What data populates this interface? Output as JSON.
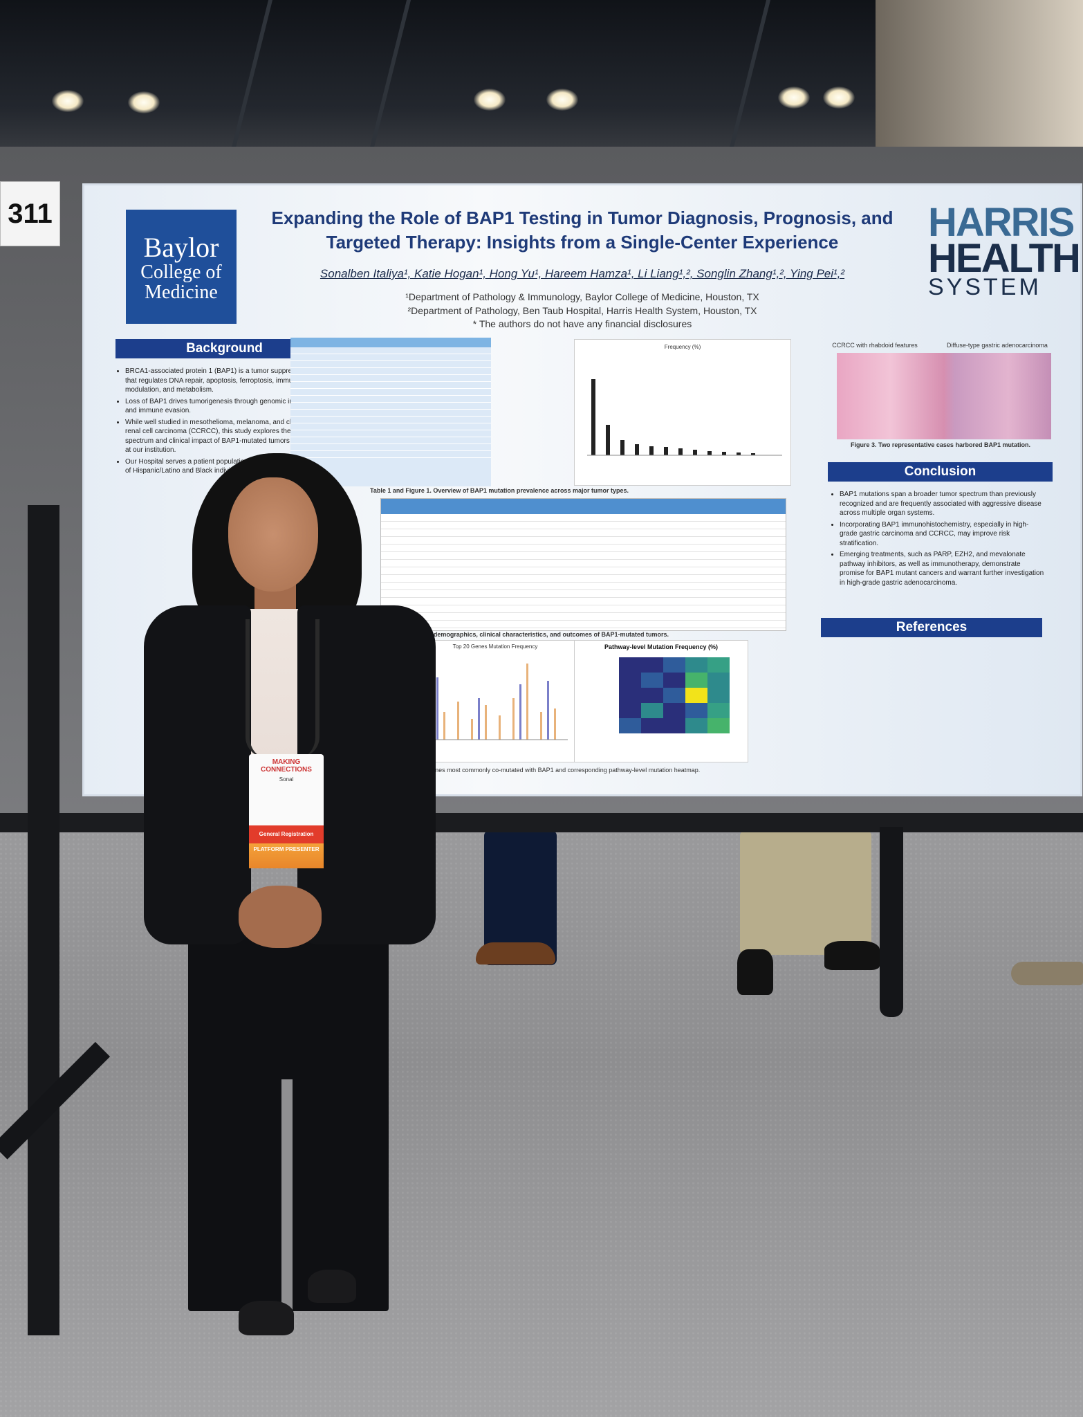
{
  "scene": {
    "booth_number": "311"
  },
  "poster": {
    "title_line1": "Expanding the Role of BAP1 Testing in Tumor Diagnosis, Prognosis, and",
    "title_line2": "Targeted Therapy: Insights from a Single-Center Experience",
    "authors": "Sonalben Italiya¹, Katie Hogan¹, Hong Yu¹, Hareem Hamza¹, Li Liang¹,², Songlin Zhang¹,², Ying Pei¹,²",
    "affiliation1": "¹Department of Pathology & Immunology, Baylor College of Medicine, Houston, TX",
    "affiliation2": "²Department of Pathology, Ben Taub Hospital, Harris Health System, Houston, TX",
    "disclosure": "* The authors do not have any financial disclosures",
    "logo_left": {
      "line1": "Baylor",
      "line2": "College of",
      "line3": "Medicine",
      "color": "#1f4f9a"
    },
    "logo_right": {
      "line1": "HARRIS",
      "line2": "HEALTH",
      "line3": "SYSTEM"
    },
    "sections": {
      "background": "Background",
      "conclusion": "Conclusion",
      "references": "References"
    },
    "background_bullets": [
      "BRCA1-associated protein 1 (BAP1) is a tumor suppressor gene that regulates DNA repair, apoptosis, ferroptosis, immune modulation, and metabolism.",
      "Loss of BAP1 drives tumorigenesis through genomic instability and immune evasion.",
      "While well studied in mesothelioma, melanoma, and clear cell renal cell carcinoma (CCRCC), this study explores the broader spectrum and clinical impact of BAP1-mutated tumors identified at our institution.",
      "Our Hospital serves a patient population with a high proportion of Hispanic/Latino and Black individuals"
    ],
    "conclusion_bullets": [
      "BAP1 mutations span a broader tumor spectrum than previously recognized and are frequently associated with aggressive disease across multiple organ systems.",
      "Incorporating BAP1 immunohistochemistry, especially in high-grade gastric carcinoma and CCRCC, may improve risk stratification.",
      "Emerging treatments, such as PARP, EZH2, and mevalonate pathway inhibitors, as well as immunotherapy, demonstrate promise for BAP1 mutant cancers and warrant further investigation in high-grade gastric adenocarcinoma."
    ],
    "figure_captions": {
      "table1_fig1": "Table 1 and Figure 1. Overview of BAP1 mutation prevalence across major tumor types.",
      "table2": "Table 2. Summary of demographics, clinical characteristics, and outcomes of BAP1-mutated tumors.",
      "fig2": "Figure 2. Top 20 genes most commonly co-mutated with BAP1 and corresponding pathway-level mutation heatmap.",
      "fig3": "Figure 3. Two representative cases harbored BAP1 mutation."
    },
    "chart_titles": {
      "frequency": "Frequency (%)",
      "top20": "Top 20 Genes Mutation Frequency",
      "heatmap": "Pathway-level Mutation Frequency (%)"
    },
    "histo_labels": [
      "CCRCC with rhabdoid features",
      "Diffuse-type gastric adenocarcinoma"
    ]
  },
  "badge": {
    "event": "MAKING CONNECTIONS",
    "name": "Sonal",
    "band1": "General Registration",
    "band2": "PLATFORM PRESENTER"
  },
  "colors": {
    "poster_header_blue": "#1c3e8c",
    "title_blue": "#1e3a78",
    "harris_blue": "#3a6a94"
  }
}
